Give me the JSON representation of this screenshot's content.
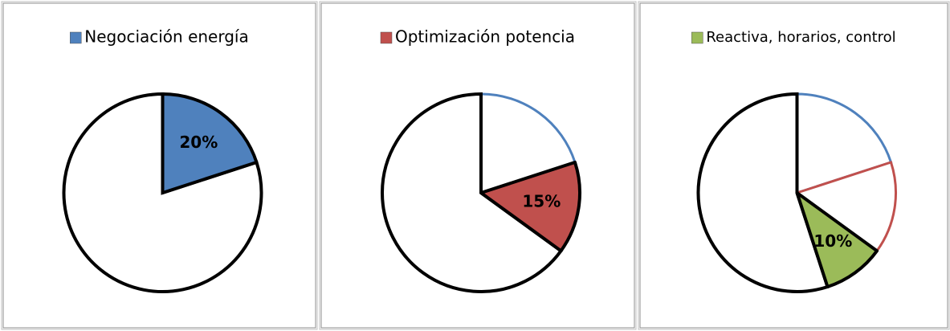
{
  "chart_data": [
    {
      "type": "pie",
      "categories": [
        "Negociación energía",
        null
      ],
      "values": [
        20,
        80
      ],
      "value_labels": [
        "20%",
        null
      ],
      "colors": [
        "#4f81bd",
        "#000000"
      ],
      "highlight": 0
    },
    {
      "type": "pie",
      "categories": [
        null,
        "Optimización potencia",
        null
      ],
      "values": [
        20,
        15,
        65
      ],
      "value_labels": [
        null,
        "15%",
        null
      ],
      "colors": [
        "#4f81bd",
        "#c0504d",
        "#000000"
      ],
      "highlight": 1
    },
    {
      "type": "pie",
      "categories": [
        null,
        null,
        "Reactiva, horarios, control",
        null
      ],
      "values": [
        20,
        15,
        10,
        55
      ],
      "value_labels": [
        null,
        null,
        "10%",
        null
      ],
      "colors": [
        "#4f81bd",
        "#c0504d",
        "#9bbb59",
        "#000000"
      ],
      "highlight": 2
    }
  ]
}
